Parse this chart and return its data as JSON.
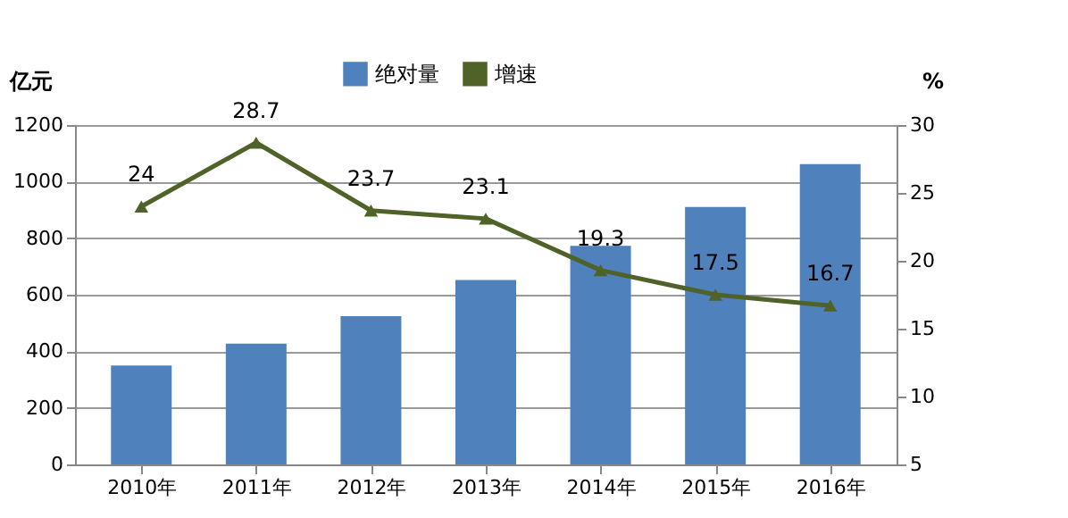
{
  "chart_data": {
    "type": "bar",
    "categories": [
      "2010年",
      "2011年",
      "2012年",
      "2013年",
      "2014年",
      "2015年",
      "2016年"
    ],
    "ylabel": "亿元",
    "y2label": "%",
    "ylim": [
      0,
      1200
    ],
    "yticks": [
      0,
      200,
      400,
      600,
      800,
      1000,
      1200
    ],
    "y2lim": [
      5,
      30
    ],
    "y2ticks": [
      5,
      10,
      15,
      20,
      25,
      30
    ],
    "series": [
      {
        "name": "绝对量",
        "color": "#4f81bd",
        "values": [
          350,
          427,
          524,
          652,
          773,
          910,
          1062
        ]
      },
      {
        "name": "增速",
        "type": "line",
        "axis": "y2",
        "color": "#4f6228",
        "marker": "triangle",
        "values": [
          24,
          28.7,
          23.7,
          23.1,
          19.3,
          17.5,
          16.7
        ],
        "data_labels": true
      }
    ],
    "grid": "y",
    "legend": "top"
  }
}
